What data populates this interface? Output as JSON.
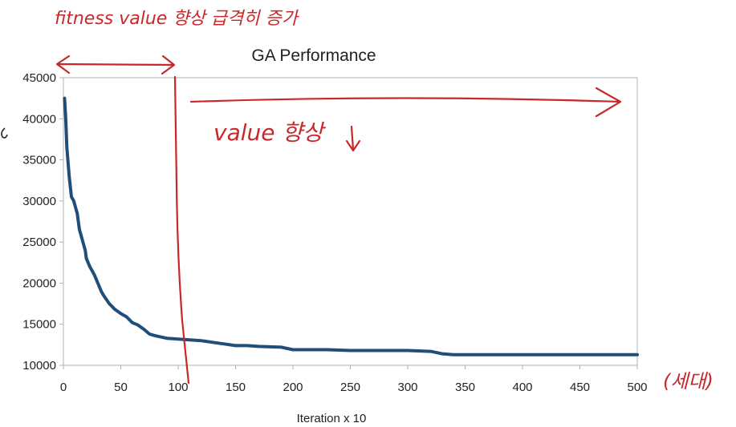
{
  "chart_data": {
    "type": "line",
    "title": "GA Performance",
    "xlabel": "Iteration x 10",
    "ylabel": "",
    "xlim": [
      0,
      500
    ],
    "ylim": [
      10000,
      45000
    ],
    "xticks": [
      "0",
      "50",
      "100",
      "150",
      "200",
      "250",
      "300",
      "350",
      "400",
      "450",
      "500"
    ],
    "yticks": [
      "10000",
      "15000",
      "20000",
      "25000",
      "30000",
      "35000",
      "40000",
      "45000"
    ],
    "grid": false,
    "series": [
      {
        "color": "#1f4e79",
        "x": [
          1,
          2,
          3,
          5,
          7,
          9,
          10,
          12,
          14,
          15,
          17,
          19,
          20,
          23,
          25,
          27,
          30,
          33,
          35,
          40,
          45,
          50,
          55,
          60,
          65,
          70,
          75,
          80,
          90,
          100,
          110,
          120,
          130,
          140,
          150,
          160,
          170,
          190,
          200,
          230,
          250,
          300,
          320,
          330,
          340,
          400,
          450,
          500
        ],
        "y": [
          42500,
          40000,
          36500,
          33000,
          30500,
          30000,
          29500,
          28500,
          26500,
          26000,
          25000,
          24000,
          23000,
          22000,
          21500,
          21000,
          20000,
          19000,
          18500,
          17500,
          16800,
          16300,
          15900,
          15200,
          14900,
          14400,
          13800,
          13600,
          13300,
          13200,
          13100,
          13000,
          12800,
          12600,
          12400,
          12400,
          12300,
          12200,
          11900,
          11900,
          11800,
          11800,
          11700,
          11400,
          11300,
          11300,
          11300,
          11300
        ]
      }
    ]
  },
  "annotations": {
    "top_note": "fitness value 향상 급격히 증가",
    "mid_note": "value 향상",
    "right_note": "(세대)"
  },
  "colors": {
    "line": "#1f4e79",
    "annotation": "#c8282a",
    "axis": "#b0b0b0"
  }
}
